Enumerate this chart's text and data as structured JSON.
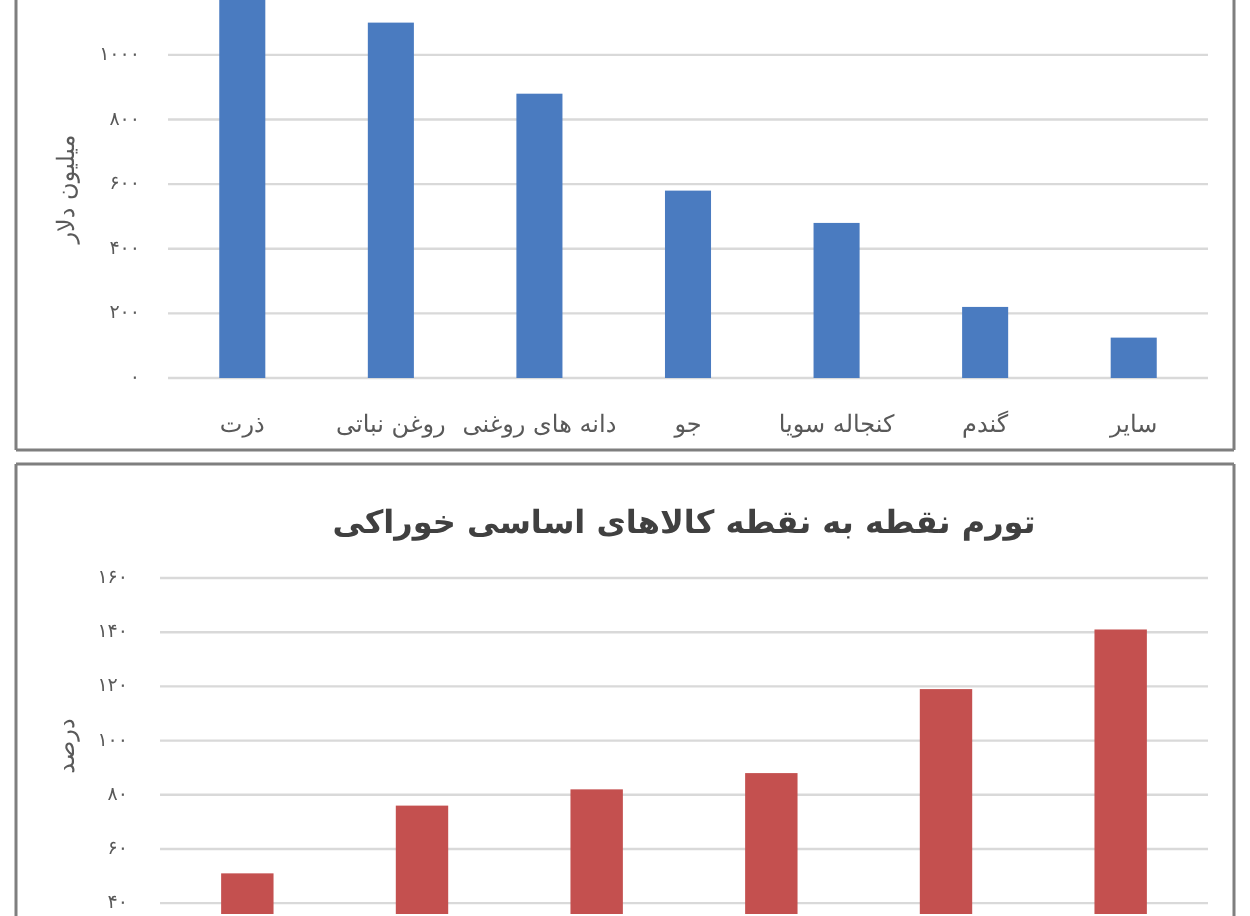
{
  "chart_data": [
    {
      "type": "bar",
      "ylabel": "میلیون دلار",
      "categories": [
        "ذرت",
        "روغن نباتی",
        "دانه های روغنی",
        "جو",
        "کنجاله سویا",
        "گندم",
        "سایر"
      ],
      "values": [
        1170,
        1100,
        880,
        580,
        480,
        220,
        125
      ],
      "color": "#4a7bc0",
      "ylim": [
        0,
        1170
      ],
      "yticks": [
        {
          "value": 0,
          "label": "۰"
        },
        {
          "value": 200,
          "label": "۲۰۰"
        },
        {
          "value": 400,
          "label": "۴۰۰"
        },
        {
          "value": 600,
          "label": "۶۰۰"
        },
        {
          "value": 800,
          "label": "۸۰۰"
        },
        {
          "value": 1000,
          "label": "۱۰۰۰"
        }
      ],
      "grid": "y"
    },
    {
      "type": "bar",
      "title": "تورم نقطه به نقطه کالاهای اساسی خوراکی",
      "ylabel": "درصد",
      "categories": [
        null,
        null,
        null,
        null,
        null,
        null
      ],
      "values": [
        51,
        76,
        82,
        88,
        119,
        141
      ],
      "color": "#c4504f",
      "ylim": [
        36,
        160
      ],
      "yticks": [
        {
          "value": 40,
          "label": "۴۰"
        },
        {
          "value": 60,
          "label": "۶۰"
        },
        {
          "value": 80,
          "label": "۸۰"
        },
        {
          "value": 100,
          "label": "۱۰۰"
        },
        {
          "value": 120,
          "label": "۱۲۰"
        },
        {
          "value": 140,
          "label": "۱۴۰"
        },
        {
          "value": 160,
          "label": "۱۶۰"
        }
      ],
      "grid": "y"
    }
  ]
}
